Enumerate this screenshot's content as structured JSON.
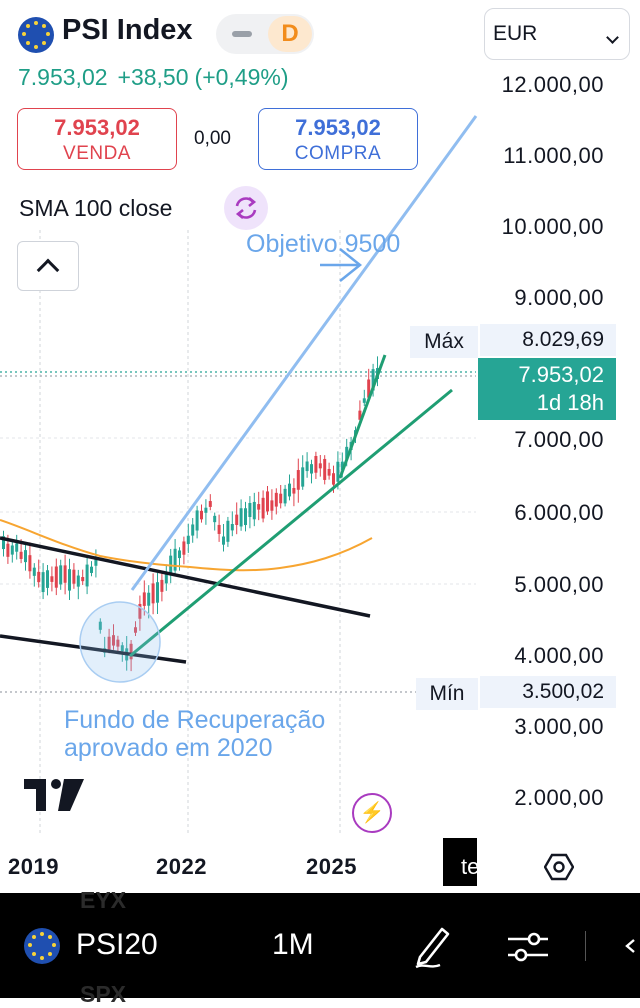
{
  "header": {
    "symbol_name": "PSI Index",
    "interval_badge": "D",
    "currency": "EUR",
    "last_price": "7.953,02",
    "change": "+38,50",
    "change_pct": "(+0,49%)"
  },
  "trade": {
    "sell_price": "7.953,02",
    "sell_label": "VENDA",
    "spread": "0,00",
    "buy_price": "7.953,02",
    "buy_label": "COMPRA"
  },
  "indicator": {
    "label": "SMA 100 close"
  },
  "price_axis": {
    "labels": [
      "12.000,00",
      "11.000,00",
      "10.000,00",
      "9.000,00",
      "7.000,00",
      "6.000,00",
      "5.000,00",
      "4.000,00",
      "3.000,00",
      "2.000,00"
    ],
    "max_label": "Máx",
    "max_value": "8.029,69",
    "last_value": "7.953,02",
    "countdown": "1d 18h",
    "min_label": "Mín",
    "min_value": "3.500,02"
  },
  "time_axis": {
    "labels": [
      "2019",
      "2022",
      "2025"
    ]
  },
  "annotations": {
    "target": "Objetivo 9500",
    "fund_line1": "Fundo de Recuperação",
    "fund_line2": "aprovado em 2020"
  },
  "bottom_bar": {
    "symbol": "PSI20",
    "interval": "1M",
    "ghost_top": "EYX",
    "ghost_bottom": "SPX",
    "dark_button_text": "te"
  },
  "colors": {
    "up": "#26a595",
    "down": "#e0434e",
    "sma": "#f7a531",
    "target_line": "#90bdf0",
    "support_line": "#1f9e73",
    "trend_line": "#131722",
    "accent_purple": "#a93bc0"
  },
  "icons": [
    "eu-flag-icon",
    "chevron-down-icon",
    "sync-icon",
    "chevron-up-icon",
    "tradingview-logo-icon",
    "bolt-icon",
    "hexagon-settings-icon",
    "pencil-icon",
    "sliders-icon",
    "arrow-left-icon"
  ]
}
